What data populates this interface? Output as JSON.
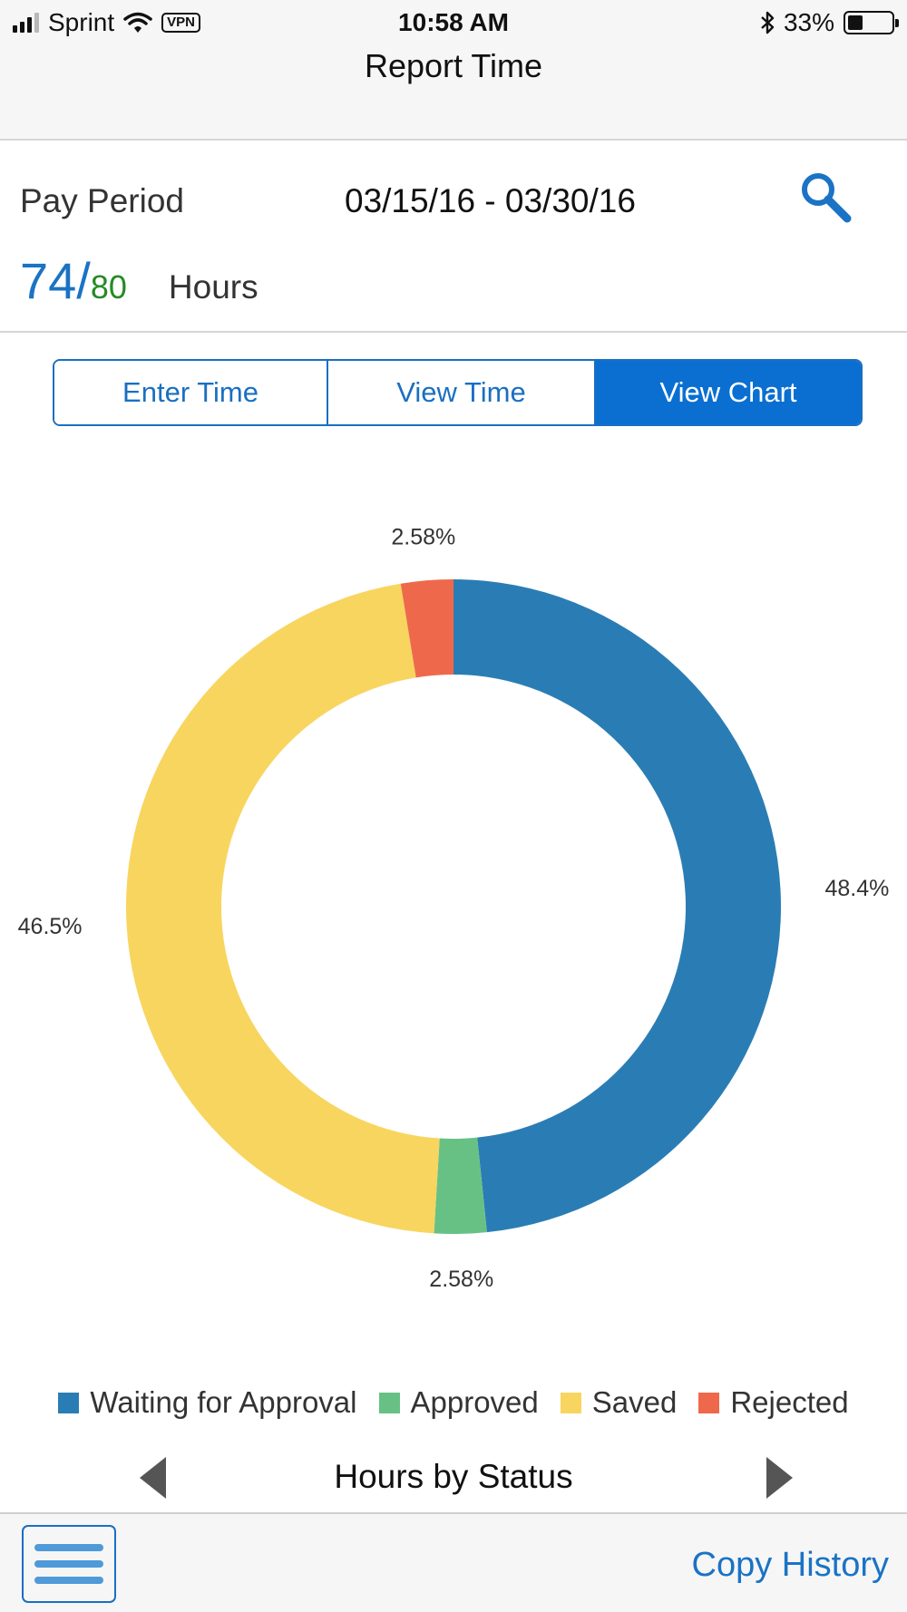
{
  "status_bar": {
    "carrier": "Sprint",
    "vpn": "VPN",
    "time": "10:58 AM",
    "battery": "33%",
    "battery_level": 0.33,
    "icons": [
      "signal-icon",
      "wifi-icon",
      "vpn-icon",
      "bluetooth-icon",
      "battery-icon"
    ]
  },
  "header": {
    "title": "Report Time"
  },
  "pay_period": {
    "label": "Pay Period",
    "dates": "03/15/16 - 03/30/16",
    "search_icon": "search-icon"
  },
  "hours": {
    "worked": "74",
    "slash": "/",
    "total": "80",
    "label": "Hours"
  },
  "tabs": [
    {
      "label": "Enter Time",
      "active": false
    },
    {
      "label": "View Time",
      "active": false
    },
    {
      "label": "View Chart",
      "active": true
    }
  ],
  "chart_data": {
    "type": "donut",
    "title": "Hours by Status",
    "series": [
      {
        "name": "Waiting for Approval",
        "value": 48.4,
        "label": "48.4%",
        "color": "#2a7db4"
      },
      {
        "name": "Approved",
        "value": 2.58,
        "label": "2.58%",
        "color": "#67c185"
      },
      {
        "name": "Saved",
        "value": 46.5,
        "label": "46.5%",
        "color": "#f8d55f"
      },
      {
        "name": "Rejected",
        "value": 2.58,
        "label": "2.58%",
        "color": "#ee694b"
      }
    ],
    "legend_position": "bottom"
  },
  "chart_nav": {
    "prev_icon": "triangle-left-icon",
    "next_icon": "triangle-right-icon"
  },
  "bottom_bar": {
    "menu_icon": "hamburger-menu-icon",
    "copy_history": "Copy History"
  },
  "colors": {
    "accent": "#1a6fc2",
    "active_tab": "#0a6fd1",
    "total_hours": "#268a25"
  }
}
